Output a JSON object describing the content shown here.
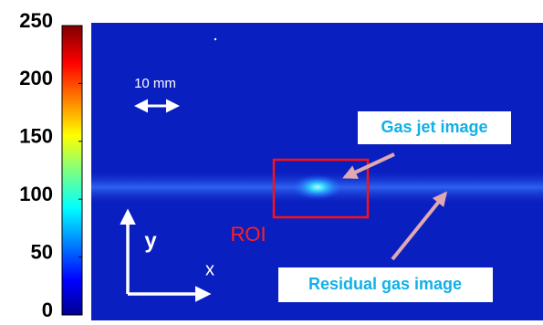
{
  "colorbar": {
    "lim": [
      0,
      250
    ],
    "ticks": [
      0,
      50,
      100,
      150,
      200,
      250
    ]
  },
  "annotations": {
    "scale": "10 mm",
    "roi": "ROI",
    "x_axis": "x",
    "y_axis": "y",
    "gas_jet": "Gas jet image",
    "residual": "Residual gas image"
  }
}
